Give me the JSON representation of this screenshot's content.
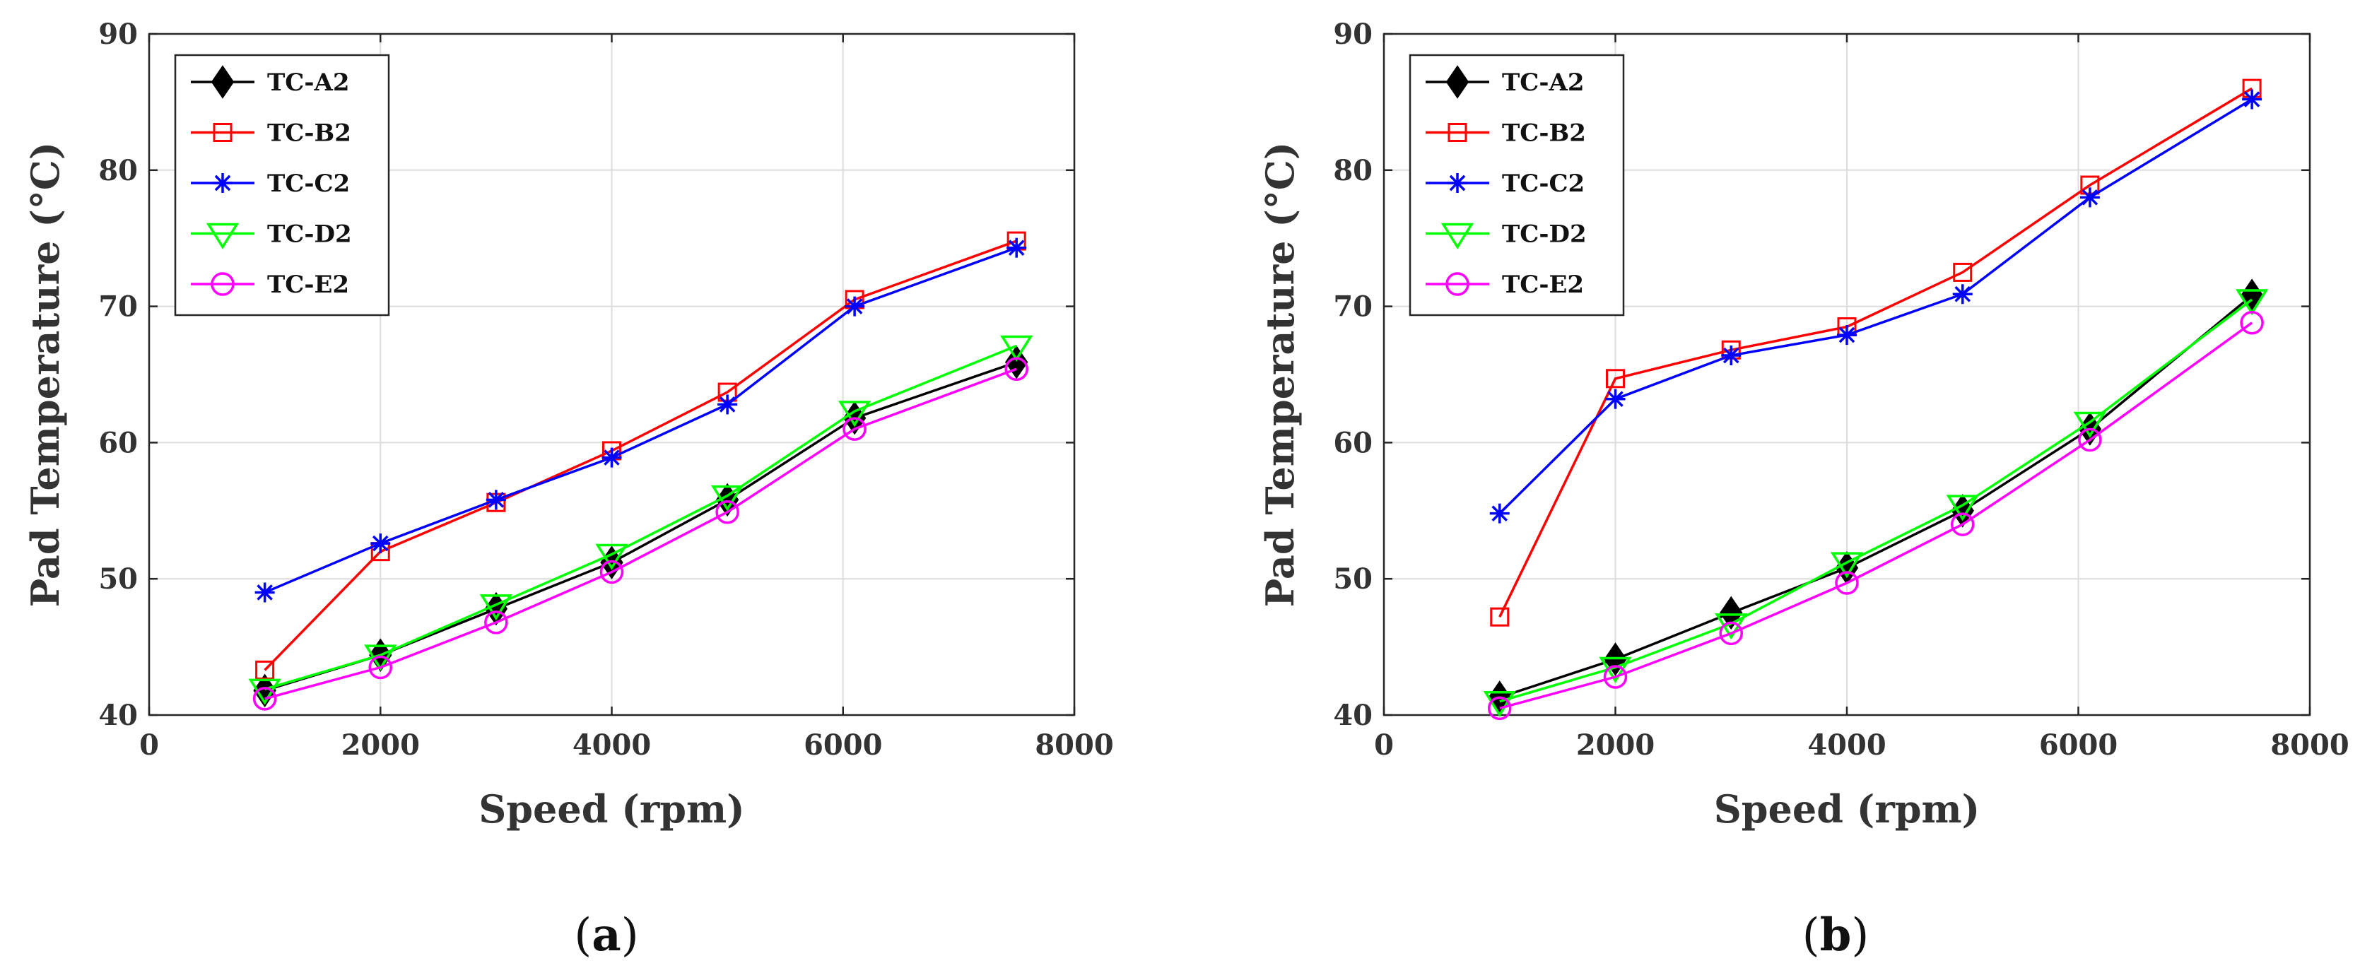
{
  "chart_data": [
    {
      "type": "line",
      "panel_label": "a",
      "xlabel": "Speed (rpm)",
      "ylabel": "Pad Temperature (°C)",
      "xlim": [
        0,
        8000
      ],
      "ylim": [
        40,
        90
      ],
      "xticks": [
        "0",
        "2000",
        "4000",
        "6000",
        "8000"
      ],
      "yticks": [
        "40",
        "50",
        "60",
        "70",
        "80",
        "90"
      ],
      "grid": true,
      "legend_position": "top-left",
      "x": [
        1000,
        2000,
        3000,
        4000,
        5000,
        6100,
        7500
      ],
      "series": [
        {
          "name": "TC-A2",
          "color": "#000000",
          "marker": "diamond-filled",
          "values": [
            41.8,
            44.4,
            47.8,
            51.2,
            55.8,
            61.8,
            65.9
          ]
        },
        {
          "name": "TC-B2",
          "color": "#ff0000",
          "marker": "square",
          "values": [
            43.3,
            52.0,
            55.6,
            59.4,
            63.7,
            70.5,
            74.8
          ]
        },
        {
          "name": "TC-C2",
          "color": "#0000ff",
          "marker": "star",
          "values": [
            49.0,
            52.6,
            55.8,
            58.9,
            62.8,
            70.0,
            74.3
          ]
        },
        {
          "name": "TC-D2",
          "color": "#00ff00",
          "marker": "triangle-down",
          "values": [
            41.9,
            44.4,
            48.1,
            51.8,
            56.1,
            62.3,
            67.1
          ]
        },
        {
          "name": "TC-E2",
          "color": "#ff00ff",
          "marker": "circle",
          "values": [
            41.2,
            43.5,
            46.8,
            50.5,
            54.9,
            61.0,
            65.4
          ]
        }
      ]
    },
    {
      "type": "line",
      "panel_label": "b",
      "xlabel": "Speed (rpm)",
      "ylabel": "Pad Temperature (°C)",
      "xlim": [
        0,
        8000
      ],
      "ylim": [
        40,
        90
      ],
      "xticks": [
        "0",
        "2000",
        "4000",
        "6000",
        "8000"
      ],
      "yticks": [
        "40",
        "50",
        "60",
        "70",
        "80",
        "90"
      ],
      "grid": true,
      "legend_position": "top-left",
      "x": [
        1000,
        2000,
        3000,
        4000,
        5000,
        6100,
        7500
      ],
      "series": [
        {
          "name": "TC-A2",
          "color": "#000000",
          "marker": "diamond-filled",
          "values": [
            41.3,
            44.1,
            47.5,
            50.8,
            55.0,
            61.0,
            70.8
          ]
        },
        {
          "name": "TC-B2",
          "color": "#ff0000",
          "marker": "square",
          "values": [
            47.2,
            64.7,
            66.8,
            68.5,
            72.5,
            78.9,
            86.0
          ]
        },
        {
          "name": "TC-C2",
          "color": "#0000ff",
          "marker": "star",
          "values": [
            54.8,
            63.2,
            66.4,
            67.9,
            70.9,
            78.0,
            85.2
          ]
        },
        {
          "name": "TC-D2",
          "color": "#00ff00",
          "marker": "triangle-down",
          "values": [
            41.0,
            43.5,
            46.7,
            51.2,
            55.4,
            61.5,
            70.5
          ]
        },
        {
          "name": "TC-E2",
          "color": "#ff00ff",
          "marker": "circle",
          "values": [
            40.5,
            42.8,
            46.0,
            49.7,
            54.0,
            60.2,
            68.8
          ]
        }
      ]
    }
  ]
}
